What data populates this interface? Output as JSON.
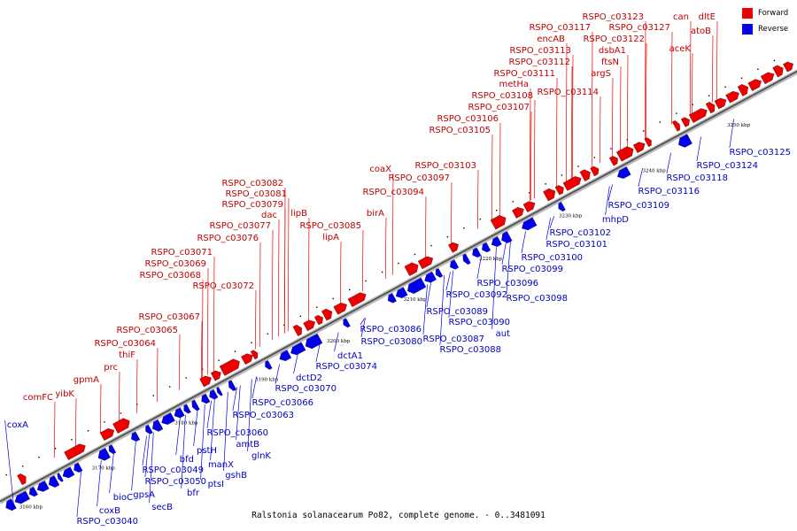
{
  "caption": "Ralstonia solanacearum Po82, complete genome. - 0..3481091",
  "legend": [
    {
      "label": "Forward",
      "color": "#ee0000"
    },
    {
      "label": "Reverse",
      "color": "#0000ee"
    }
  ],
  "colors": {
    "forward": "#ee0000",
    "reverse": "#0000ee",
    "label_forward": "#c00000",
    "label_reverse": "#0000c0",
    "axis": "#555555"
  },
  "ticks": [
    "3160 kbp",
    "3170 kbp",
    "3180 kbp",
    "3190 kbp",
    "3200 kbp",
    "3210 kbp",
    "3220 kbp",
    "3230 kbp",
    "3240 kbp",
    "3250 kbp"
  ],
  "forward_labels": [
    "comFC",
    "yibK",
    "gpmA",
    "prc",
    "thiF",
    "RSPO_c03064",
    "RSPO_c03065",
    "RSPO_c03067",
    "RSPO_c03072",
    "RSPO_c03068",
    "RSPO_c03069",
    "RSPO_c03071",
    "RSPO_c03076",
    "RSPO_c03077",
    "dac",
    "RSPO_c03079",
    "RSPO_c03081",
    "RSPO_c03082",
    "lipB",
    "RSPO_c03085",
    "lipA",
    "birA",
    "RSPO_c03094",
    "coaX",
    "RSPO_c03097",
    "RSPO_c03103",
    "RSPO_c03105",
    "RSPO_c03106",
    "RSPO_c03107",
    "RSPO_c03108",
    "metHa",
    "RSPO_c03111",
    "RSPO_c03112",
    "RSPO_c03113",
    "encAB",
    "RSPO_c03117",
    "RSPO_c03114",
    "argS",
    "ftsN",
    "dsbA1",
    "RSPO_c03122",
    "RSPO_c03123",
    "RSPO_c03127",
    "can",
    "aceK",
    "atoB",
    "dltE"
  ],
  "reverse_labels": [
    "coxA",
    "RSPO_c03040",
    "coxB",
    "bioC",
    "gpsA",
    "secB",
    "RSPO_c03049",
    "RSPO_c03050",
    "bfr",
    "ptsI",
    "bfd",
    "pstH",
    "manX",
    "gshB",
    "amtB",
    "glnK",
    "RSPO_c03060",
    "RSPO_c03063",
    "RSPO_c03066",
    "RSPO_c03070",
    "dctD2",
    "RSPO_c03074",
    "dctA1",
    "RSPO_c03080",
    "RSPO_c03086",
    "RSPO_c03087",
    "RSPO_c03088",
    "RSPO_c03089",
    "RSPO_c03090",
    "aut",
    "RSPO_c03092",
    "RSPO_c03096",
    "RSPO_c03098",
    "RSPO_c03099",
    "RSPO_c03100",
    "RSPO_c03101",
    "RSPO_c03102",
    "mhpD",
    "RSPO_c03109",
    "RSPO_c03116",
    "RSPO_c03118",
    "RSPO_c03124",
    "RSPO_c03125"
  ]
}
